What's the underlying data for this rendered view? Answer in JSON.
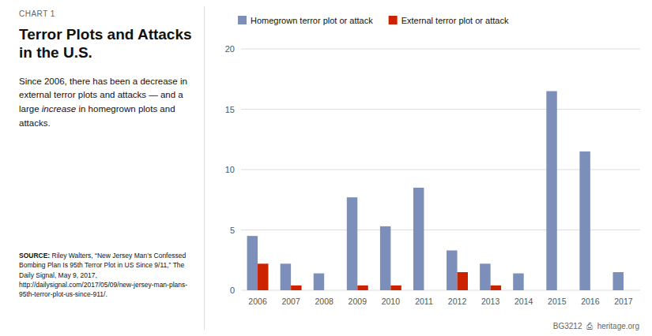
{
  "chart_data": {
    "type": "bar",
    "title": "Terror Plots and Attacks in the U.S.",
    "categories": [
      "2006",
      "2007",
      "2008",
      "2009",
      "2010",
      "2011",
      "2012",
      "2013",
      "2014",
      "2015",
      "2016",
      "2017"
    ],
    "series": [
      {
        "name": "Homegrown terror plot or attack",
        "color": "#7b8fba",
        "values": [
          4.5,
          2.2,
          1.4,
          7.7,
          5.3,
          8.5,
          3.3,
          2.2,
          1.4,
          16.5,
          11.5,
          1.5
        ]
      },
      {
        "name": "External terror plot or attack",
        "color": "#cc2200",
        "values": [
          2.2,
          0.4,
          0.0,
          0.4,
          0.4,
          0.0,
          1.5,
          0.4,
          0.0,
          0.0,
          0.0,
          0.0
        ]
      }
    ],
    "ylim": [
      0,
      20
    ],
    "yticks": [
      0,
      5,
      10,
      15,
      20
    ],
    "grid": true,
    "legend": "top",
    "annotations": [
      "CHART 1",
      "Since 2006, there has been a decrease in external terror plots and attacks — and a large",
      "increase",
      "in homegrown plots and attacks.",
      "SOURCE:",
      "Riley Walters, “New Jersey Man’s Confessed Bombing Plan Is 95th Terror Plot in US Since 9/11,” The Daily Signal, May 9, 2017, http://dailysignal.com/2017/05/09/new-jersey-man-plans-95th-terror-plot-us-since-911/.",
      "BG3212",
      "⎙",
      "heritage.org"
    ]
  }
}
